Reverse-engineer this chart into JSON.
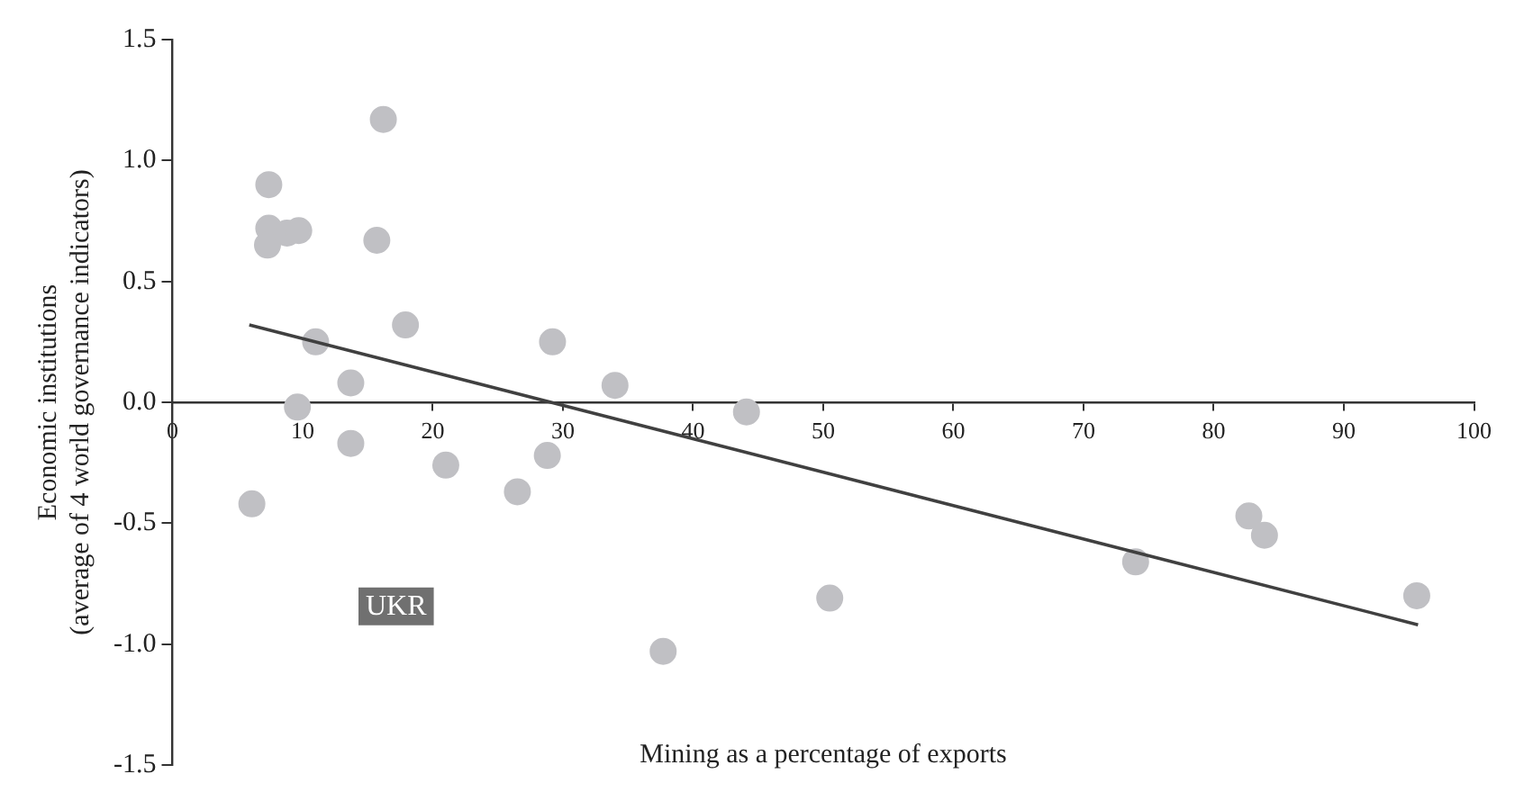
{
  "chart_data": {
    "type": "scatter",
    "xlabel": "Mining as a percentage of exports",
    "ylabel": "Economic institutions\n(average of 4 world governance indicators)",
    "annotations": [
      "UKR"
    ],
    "xlim": [
      0,
      100
    ],
    "xticks": [
      0,
      10,
      20,
      30,
      40,
      50,
      60,
      70,
      80,
      90,
      100
    ],
    "ylim": [
      -1.5,
      1.5
    ],
    "yticks": [
      -1.5,
      {
        "value": -1,
        "label": "-1.0"
      },
      -0.5,
      {
        "value": 0,
        "label": "0.0"
      },
      0.5,
      {
        "value": 1,
        "label": "1.0"
      },
      1.5
    ],
    "grid": false,
    "legend": false,
    "marker": "circle",
    "series": [
      {
        "color": "#c0c0c4",
        "x": [
          6.1,
          7.4,
          7.4,
          7.3,
          8.8,
          9.7,
          9.6,
          11.0,
          13.7,
          13.7,
          15.7,
          16.2,
          17.9,
          21.0,
          26.5,
          28.8,
          29.2,
          34.0,
          37.7,
          44.1,
          50.5,
          74.0,
          82.7,
          83.9,
          95.6
        ],
        "values": [
          -0.42,
          0.9,
          0.72,
          0.65,
          0.7,
          0.71,
          -0.02,
          0.25,
          0.08,
          -0.17,
          0.67,
          1.17,
          0.32,
          -0.26,
          -0.37,
          -0.22,
          0.25,
          0.07,
          -1.03,
          -0.04,
          -0.81,
          -0.66,
          -0.47,
          -0.55,
          -0.8
        ]
      },
      {
        "type": "line",
        "color": "#404040",
        "marker": "none",
        "line_style": "solid",
        "x": [
          5.9,
          95.7
        ],
        "values": [
          0.32,
          -0.92
        ]
      }
    ]
  }
}
